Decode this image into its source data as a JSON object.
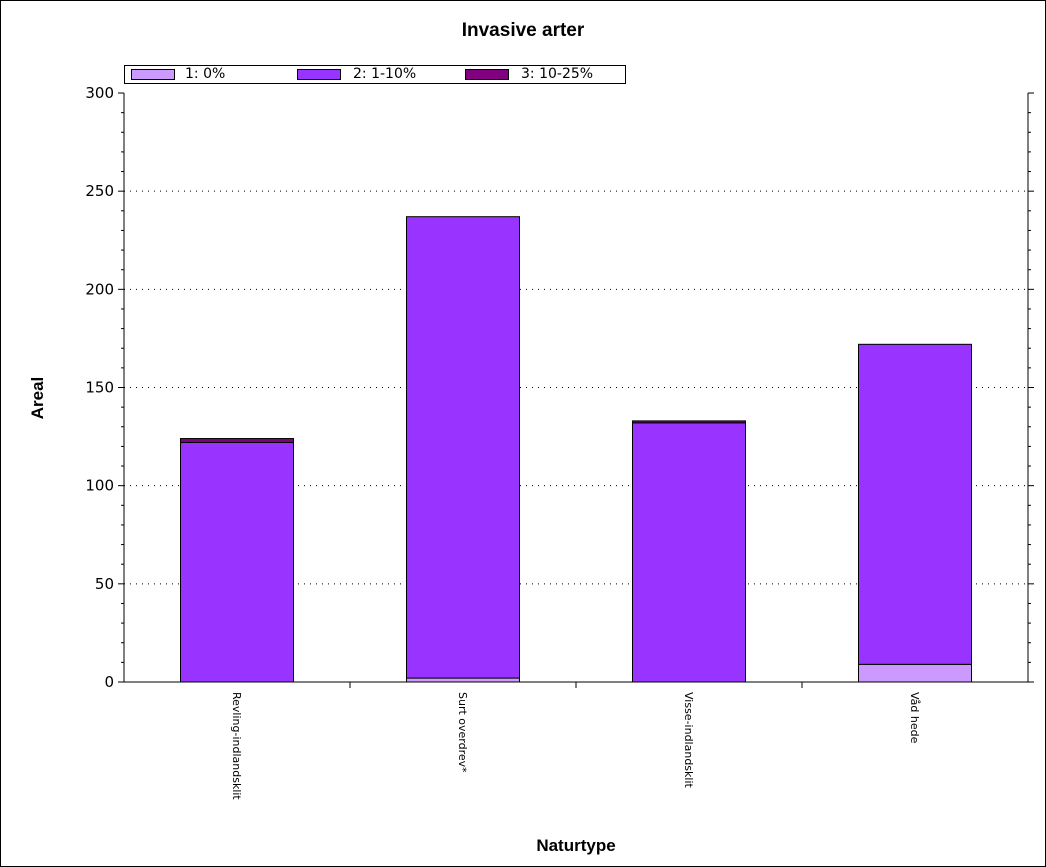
{
  "chart_data": {
    "type": "bar",
    "stacked": true,
    "title": "Invasive arter",
    "xlabel": "Naturtype",
    "ylabel": "Areal",
    "ylim": [
      0,
      300
    ],
    "yticks": [
      "0",
      "50",
      "100",
      "150",
      "200",
      "250",
      "300"
    ],
    "gridlines": [
      50,
      100,
      150,
      200,
      250
    ],
    "grid": "horizontal dotted",
    "legend_position": "top-left",
    "categories": [
      "Revling-indlandsklit",
      "Surt overdrev*",
      "Visse-indlandsklit",
      "Våd hede"
    ],
    "series": [
      {
        "name": "1: 0%",
        "color": "#cc99ff",
        "values": [
          0,
          2,
          0,
          9
        ]
      },
      {
        "name": "2: 1-10%",
        "color": "#9933ff",
        "values": [
          122,
          235,
          132,
          163
        ]
      },
      {
        "name": "3: 10-25%",
        "color": "#800080",
        "values": [
          2,
          0,
          1,
          0
        ]
      }
    ]
  }
}
